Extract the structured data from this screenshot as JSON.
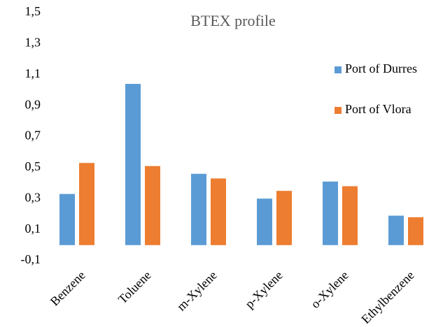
{
  "chart_data": {
    "type": "bar",
    "title": "BTEX profile",
    "categories": [
      "Benzene",
      "Toluene",
      "m-Xylene",
      "p-Xylene",
      "o-Xylene",
      "Ethylbenzene"
    ],
    "series": [
      {
        "name": "Port of Durres",
        "color": "#5b9bd5",
        "values": [
          0.33,
          1.04,
          0.46,
          0.3,
          0.41,
          0.19
        ]
      },
      {
        "name": "Port of Vlora",
        "color": "#ed7d31",
        "values": [
          0.53,
          0.51,
          0.43,
          0.35,
          0.38,
          0.18
        ]
      }
    ],
    "ylim": [
      -0.1,
      1.5
    ],
    "yticks": [
      {
        "value": -0.1,
        "label": "-0,1"
      },
      {
        "value": 0.1,
        "label": "0,1"
      },
      {
        "value": 0.3,
        "label": "0,3"
      },
      {
        "value": 0.5,
        "label": "0,5"
      },
      {
        "value": 0.7,
        "label": "0,7"
      },
      {
        "value": 0.9,
        "label": "0,9"
      },
      {
        "value": 1.1,
        "label": "1,1"
      },
      {
        "value": 1.3,
        "label": "1,3"
      },
      {
        "value": 1.5,
        "label": "1,5"
      }
    ],
    "legend": "right"
  }
}
